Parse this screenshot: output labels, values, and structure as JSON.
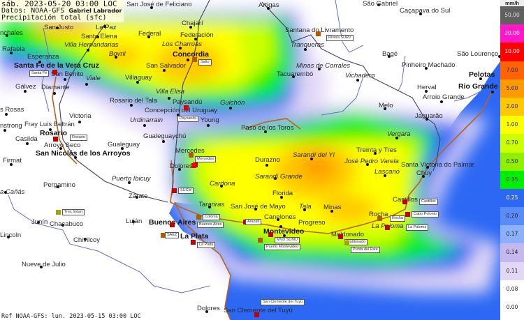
{
  "header": {
    "datetime": "sáb. 2023-05-20 03:00 LOC",
    "source": "Datos: NOAA-GFS",
    "author": "Gabriel Labrador",
    "variable": "Precipitación total (sfc)"
  },
  "footer": "Ref NOAA-GFS: lun. 2023-05-15 03:00 LOC",
  "legend": {
    "unit": "mm/h",
    "entries": [
      {
        "value": "50.00",
        "color": "#606060",
        "text": "#dddddd"
      },
      {
        "value": "20.00",
        "color": "#ff18c8",
        "text": "#ffffff"
      },
      {
        "value": "10.00",
        "color": "#ff0000",
        "text": "#ffffff"
      },
      {
        "value": "7.00",
        "color": "#ff6400",
        "text": "#222222"
      },
      {
        "value": "5.00",
        "color": "#ff9a00",
        "text": "#222222"
      },
      {
        "value": "2.00",
        "color": "#ffc800",
        "text": "#222222"
      },
      {
        "value": "1.00",
        "color": "#ffff00",
        "text": "#222222"
      },
      {
        "value": "0.70",
        "color": "#ccff00",
        "text": "#222222"
      },
      {
        "value": "0.50",
        "color": "#90f000",
        "text": "#222222"
      },
      {
        "value": "0.35",
        "color": "#00ee00",
        "text": "#222222"
      },
      {
        "value": "0.25",
        "color": "#2c68f4",
        "text": "#ffffff"
      },
      {
        "value": "0.20",
        "color": "#5a8cf8",
        "text": "#222222"
      },
      {
        "value": "0.17",
        "color": "#8cb0fc",
        "text": "#222222"
      },
      {
        "value": "0.14",
        "color": "#c4b8ec",
        "text": "#222222"
      },
      {
        "value": "0.11",
        "color": "#e2d8f6",
        "text": "#222222"
      },
      {
        "value": "0.08",
        "color": "#ffffff",
        "text": "#222222"
      },
      {
        "value": "0.00",
        "color": "#ffffff",
        "text": "#222222"
      }
    ]
  },
  "colors": {
    "ocean": "#2c68f4",
    "coast": "#b8641e",
    "river": "#6a6ad0",
    "border": "#404060"
  },
  "cities": [
    {
      "name": "San José de Feliciano",
      "style": "normal"
    },
    {
      "name": "San Justo",
      "style": "normal"
    },
    {
      "name": "nchales",
      "style": "normal"
    },
    {
      "name": "La Paz",
      "style": "normal"
    },
    {
      "name": "Santa Elena",
      "style": "normal"
    },
    {
      "name": "Federal",
      "style": "normal"
    },
    {
      "name": "Chajarí",
      "style": "normal"
    },
    {
      "name": "Federación",
      "style": "normal"
    },
    {
      "name": "Villa Hernandarias",
      "style": "italic"
    },
    {
      "name": "Los Charrúas",
      "style": "italic"
    },
    {
      "name": "Rafaela",
      "style": "normal"
    },
    {
      "name": "Bovril",
      "style": "italic"
    },
    {
      "name": "Concordia",
      "style": "bold"
    },
    {
      "name": "Esperanza",
      "style": "normal"
    },
    {
      "name": "San Salvador",
      "style": "normal"
    },
    {
      "name": "Santa Fe de la Vera Cruz",
      "style": "bold"
    },
    {
      "name": "San Benito",
      "style": "normal"
    },
    {
      "name": "Viale",
      "style": "italic"
    },
    {
      "name": "Villaguay",
      "style": "normal"
    },
    {
      "name": "Gálvez",
      "style": "normal"
    },
    {
      "name": "Diamante",
      "style": "normal"
    },
    {
      "name": "Villa Elisa",
      "style": "italic"
    },
    {
      "name": "Rosario del Tala",
      "style": "normal"
    },
    {
      "name": "Paysandú",
      "style": "normal"
    },
    {
      "name": "Guichón",
      "style": "italic"
    },
    {
      "name": "s Rosas",
      "style": "normal"
    },
    {
      "name": "Concepción del Uruguay",
      "style": "normal"
    },
    {
      "name": "Young",
      "style": "normal"
    },
    {
      "name": "Victoria",
      "style": "normal"
    },
    {
      "name": "Urdinarrain",
      "style": "italic"
    },
    {
      "name": "nstrong",
      "style": "normal"
    },
    {
      "name": "Fray Luis Beltrán",
      "style": "normal"
    },
    {
      "name": "Rosario",
      "style": "bold"
    },
    {
      "name": "Gualeguaychú",
      "style": "normal"
    },
    {
      "name": "Casilda",
      "style": "normal"
    },
    {
      "name": "Arroyo Seco",
      "style": "normal"
    },
    {
      "name": "Gualeguay",
      "style": "normal"
    },
    {
      "name": "San Nicolás de los Arroyos",
      "style": "bold"
    },
    {
      "name": "Mercedes",
      "style": "normal"
    },
    {
      "name": "Paso de los Toros",
      "style": "normal"
    },
    {
      "name": "Artigas",
      "style": "normal"
    },
    {
      "name": "São Gabriel",
      "style": "normal"
    },
    {
      "name": "Caçapava do Sul",
      "style": "normal"
    },
    {
      "name": "Santana do Livramento",
      "style": "normal"
    },
    {
      "name": "Tranqueras",
      "style": "italic"
    },
    {
      "name": "Bagé",
      "style": "normal"
    },
    {
      "name": "São Lourenço",
      "style": "normal"
    },
    {
      "name": "Pinheiro Machado",
      "style": "normal"
    },
    {
      "name": "Minas de Corrales",
      "style": "italic"
    },
    {
      "name": "Tacuarembó",
      "style": "normal"
    },
    {
      "name": "Pelotas",
      "style": "bold"
    },
    {
      "name": "Vichadero",
      "style": "italic"
    },
    {
      "name": "Herval",
      "style": "normal"
    },
    {
      "name": "Rio Grande",
      "style": "bold"
    },
    {
      "name": "Arroio Grande",
      "style": "normal"
    },
    {
      "name": "Melo",
      "style": "normal"
    },
    {
      "name": "Jaguarão",
      "style": "normal"
    },
    {
      "name": "Vergara",
      "style": "italic"
    },
    {
      "name": "Treinta y Tres",
      "style": "normal"
    },
    {
      "name": "Sarandí del Yí",
      "style": "italic"
    },
    {
      "name": "Durazno",
      "style": "normal"
    },
    {
      "name": "José Pedro Varela",
      "style": "italic"
    },
    {
      "name": "Santa Victoria do Palmar",
      "style": "normal"
    },
    {
      "name": "Chuy",
      "style": "normal"
    },
    {
      "name": "Lascano",
      "style": "italic"
    },
    {
      "name": "Castillos",
      "style": "normal"
    },
    {
      "name": "Sarandí Grande",
      "style": "italic"
    },
    {
      "name": "Cardona",
      "style": "italic"
    },
    {
      "name": "Florida",
      "style": "normal"
    },
    {
      "name": "Tarariras",
      "style": "italic"
    },
    {
      "name": "San José de Mayo",
      "style": "normal"
    },
    {
      "name": "Tala",
      "style": "italic"
    },
    {
      "name": "Minas",
      "style": "normal"
    },
    {
      "name": "Rocha",
      "style": "normal"
    },
    {
      "name": "Canelones",
      "style": "normal"
    },
    {
      "name": "La Paloma",
      "style": "italic"
    },
    {
      "name": "Progreso",
      "style": "normal"
    },
    {
      "name": "Montevideo",
      "style": "bold"
    },
    {
      "name": "Maldonado",
      "style": "normal"
    },
    {
      "name": "Firmat",
      "style": "normal"
    },
    {
      "name": "Dolores",
      "style": "normal"
    },
    {
      "name": "Puerto Ibicuy",
      "style": "italic"
    },
    {
      "name": "Pergamino",
      "style": "normal"
    },
    {
      "name": "a Cañás",
      "style": "italic"
    },
    {
      "name": "Zárate",
      "style": "normal"
    },
    {
      "name": "Junín",
      "style": "normal"
    },
    {
      "name": "Chacabuco",
      "style": "normal"
    },
    {
      "name": "Luján",
      "style": "normal"
    },
    {
      "name": "Buenos Aires",
      "style": "bold"
    },
    {
      "name": "Lincoln",
      "style": "normal"
    },
    {
      "name": "Chivilcoy",
      "style": "normal"
    },
    {
      "name": "La Plata",
      "style": "bold"
    },
    {
      "name": "Nueve de Julio",
      "style": "normal"
    },
    {
      "name": "Dolores",
      "style": "normal"
    },
    {
      "name": "San Clemente del Tuyú",
      "style": "normal"
    }
  ],
  "stations": [
    {
      "label": "Salto",
      "color": "#b05a00"
    },
    {
      "label": "Santa Fé",
      "color": "#c00000"
    },
    {
      "label": "Paysandú",
      "color": "#dd0000"
    },
    {
      "label": "",
      "color": "#c00000"
    },
    {
      "label": "Rosario",
      "color": "#c00000"
    },
    {
      "label": "Mercedes",
      "color": "#b05a00"
    },
    {
      "label": "Rivera SURV",
      "color": "#b05a00"
    },
    {
      "label": "",
      "color": "#ee0000"
    },
    {
      "label": "SUCM",
      "color": "#c00000"
    },
    {
      "label": "Tres Indart",
      "color": "#a8a000"
    },
    {
      "label": "Colonia",
      "color": "#b05a00"
    },
    {
      "label": "Buenos Aires",
      "color": "#c00000"
    },
    {
      "label": "SAEZ",
      "color": "#b05a00"
    },
    {
      "label": "La Plata",
      "color": "#c00000"
    },
    {
      "label": "Arazatí",
      "color": "#c00000"
    },
    {
      "label": "MVD SUMU",
      "color": "#c00000"
    },
    {
      "label": "Puerto Montevideo",
      "color": "#b05a00"
    },
    {
      "label": "Maldonado",
      "color": "#c00000"
    },
    {
      "label": "Punta del Este",
      "color": "#a8a000"
    },
    {
      "label": "Rocha",
      "color": "#b05a00"
    },
    {
      "label": "La Paloma",
      "color": "#c00000"
    },
    {
      "label": "Castillos",
      "color": "#c00000"
    },
    {
      "label": "Cabo Polonio",
      "color": "#c00000"
    },
    {
      "label": "San Clemente del Tuyú",
      "color": "#c00000"
    }
  ]
}
